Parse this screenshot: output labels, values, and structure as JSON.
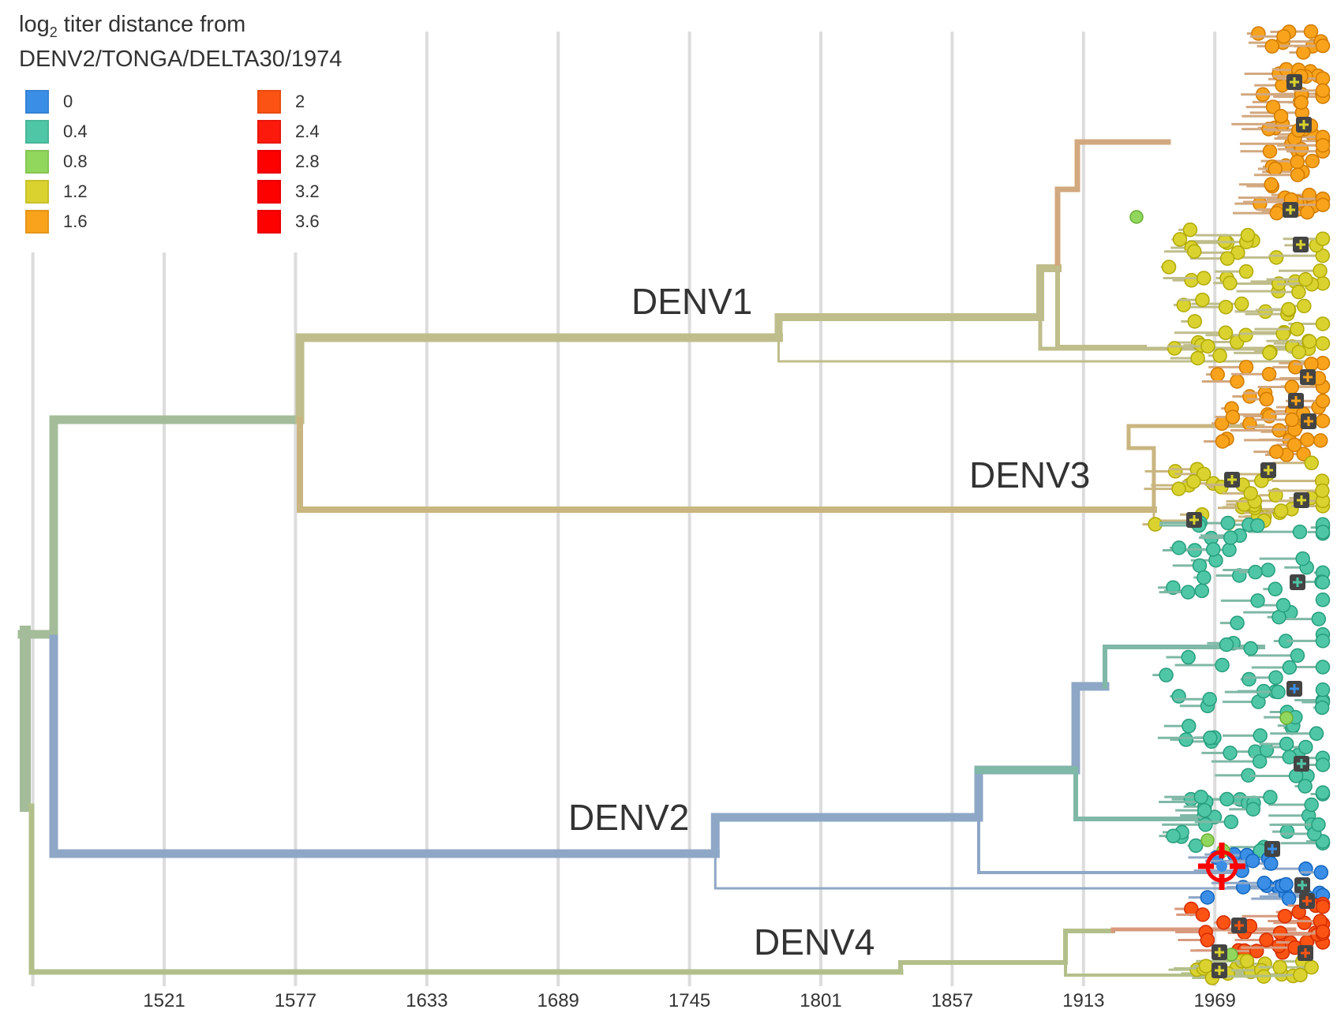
{
  "legend": {
    "title_prefix": "log",
    "title_sub": "2",
    "title_rest": " titer distance from",
    "title_line2": "DENV2/TONGA/DELTA30/1974",
    "items": [
      {
        "label": "0",
        "color": "#3b8ee6"
      },
      {
        "label": "0.4",
        "color": "#4fc6a6"
      },
      {
        "label": "0.8",
        "color": "#91d65d"
      },
      {
        "label": "1.2",
        "color": "#d9d22f"
      },
      {
        "label": "1.6",
        "color": "#f9a31c"
      },
      {
        "label": "2",
        "color": "#fb5313"
      },
      {
        "label": "2.4",
        "color": "#fc1a0c"
      },
      {
        "label": "2.8",
        "color": "#fd0000"
      },
      {
        "label": "3.2",
        "color": "#fd0000"
      },
      {
        "label": "3.6",
        "color": "#fd0000"
      }
    ]
  },
  "axis": {
    "ticks": [
      "1521",
      "1577",
      "1633",
      "1689",
      "1745",
      "1801",
      "1857",
      "1913",
      "1969"
    ],
    "tick_years": [
      1521,
      1577,
      1633,
      1689,
      1745,
      1801,
      1857,
      1913,
      1969
    ]
  },
  "clades": [
    {
      "label": "DENV1",
      "root_year": 1783
    },
    {
      "label": "DENV3",
      "root_year": 1943
    },
    {
      "label": "DENV2",
      "root_year": 1756
    },
    {
      "label": "DENV4",
      "root_year": 1835
    }
  ],
  "colors": {
    "grid": "#dcdcdc",
    "denv1_branch": "#bfbd8b",
    "denv1_tip_branch": "#d2a87f",
    "denv3_branch": "#c9b57f",
    "denv2_branch": "#8ea7c6",
    "denv2_tip_branch": "#7fb8a6",
    "denv4_branch": "#b3bf8a",
    "denv4_tip_branch": "#d89a7e",
    "root_branch": "#a4bc99",
    "reference_marker": "#ff0000",
    "node_badge": "#444444"
  }
}
